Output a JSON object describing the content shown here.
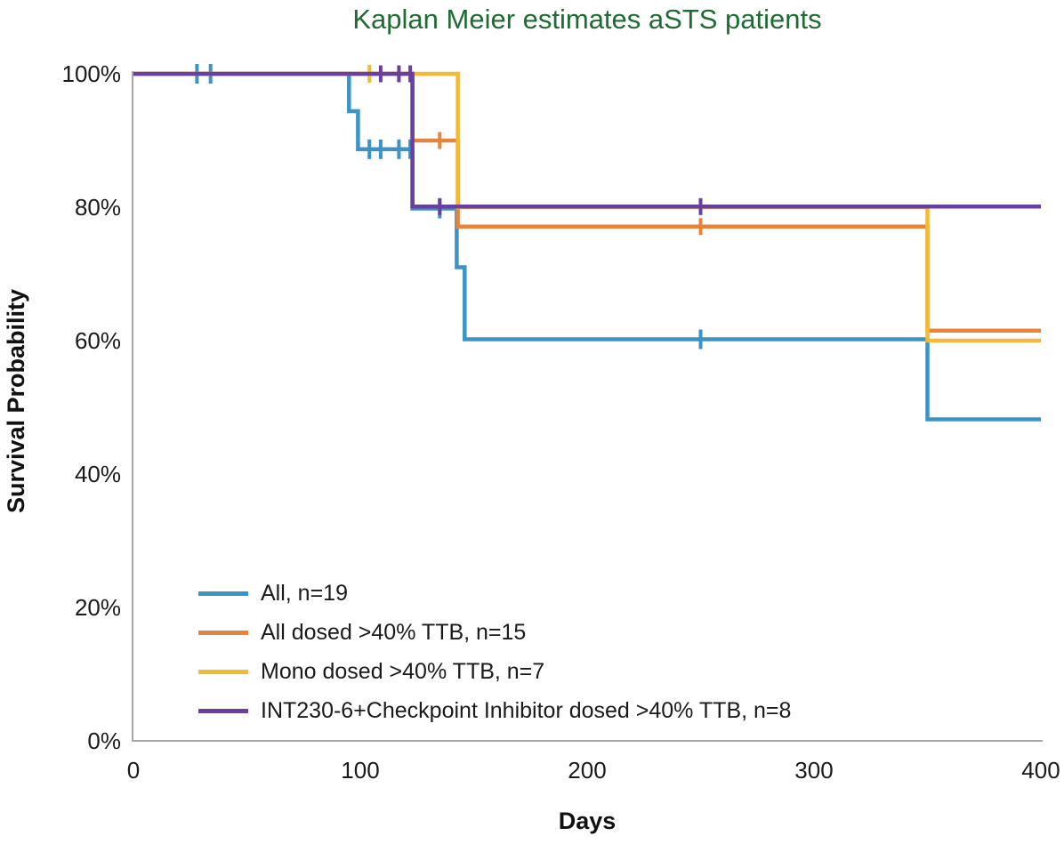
{
  "chart_data": {
    "type": "line",
    "subtype": "kaplan-meier-step",
    "title": "Kaplan Meier estimates aSTS patients",
    "title_color": "#1E6B34",
    "xlabel": "Days",
    "ylabel": "Survival Probability",
    "xlim": [
      0,
      400
    ],
    "ylim": [
      0,
      100
    ],
    "grid": false,
    "axis_color": "#A6A6A6",
    "legend_position": "inside-bottom-left",
    "x_ticks": [
      {
        "value": 0,
        "label": "0"
      },
      {
        "value": 100,
        "label": "100"
      },
      {
        "value": 200,
        "label": "200"
      },
      {
        "value": 300,
        "label": "300"
      },
      {
        "value": 400,
        "label": "400"
      }
    ],
    "y_ticks": [
      {
        "value": 100,
        "label": "100%"
      },
      {
        "value": 80,
        "label": "80%"
      },
      {
        "value": 60,
        "label": "60%"
      },
      {
        "value": 40,
        "label": "40%"
      },
      {
        "value": 20,
        "label": "20%"
      },
      {
        "value": 0,
        "label": "0%"
      }
    ],
    "series": [
      {
        "name": "All, n=19",
        "color": "#3B93C6",
        "tick_half_length": 11,
        "points": [
          [
            0,
            100
          ],
          [
            95,
            100
          ],
          [
            95,
            94.4
          ],
          [
            99,
            94.4
          ],
          [
            99,
            88.7
          ],
          [
            123,
            88.7
          ],
          [
            123,
            79.8
          ],
          [
            142.5,
            79.8
          ],
          [
            142.5,
            71
          ],
          [
            146,
            71
          ],
          [
            146,
            60.2
          ],
          [
            350,
            60.2
          ],
          [
            350,
            48.2
          ],
          [
            400,
            48.2
          ]
        ],
        "censor_marks": [
          [
            28,
            100
          ],
          [
            34,
            100
          ],
          [
            104,
            88.7
          ],
          [
            109,
            88.7
          ],
          [
            117,
            88.7
          ],
          [
            122,
            88.7
          ],
          [
            135,
            79.8
          ],
          [
            250,
            60.2
          ]
        ]
      },
      {
        "name": "All dosed >40% TTB, n=15",
        "color": "#E8833A",
        "tick_half_length": 9.5,
        "points": [
          [
            0,
            100
          ],
          [
            123,
            100
          ],
          [
            123,
            90
          ],
          [
            143,
            90
          ],
          [
            143,
            77.1
          ],
          [
            350,
            77.1
          ],
          [
            350,
            61.5
          ],
          [
            400,
            61.5
          ]
        ],
        "censor_marks": [
          [
            135,
            90
          ],
          [
            250,
            77.1
          ]
        ]
      },
      {
        "name": "Mono dosed >40% TTB, n=7",
        "color": "#F3BA36",
        "tick_half_length": 10,
        "points": [
          [
            0,
            100
          ],
          [
            143,
            100
          ],
          [
            143,
            80
          ],
          [
            350,
            80
          ],
          [
            350,
            60
          ],
          [
            400,
            60
          ]
        ],
        "censor_marks": [
          [
            104,
            100
          ]
        ]
      },
      {
        "name": "INT230-6+Checkpoint Inhibitor dosed >40% TTB, n=8",
        "color": "#6B3FA0",
        "tick_half_length": 9.5,
        "points": [
          [
            0,
            100
          ],
          [
            123,
            100
          ],
          [
            123,
            80.1
          ],
          [
            400,
            80.1
          ]
        ],
        "censor_marks": [
          [
            109,
            100
          ],
          [
            117,
            100
          ],
          [
            122,
            100
          ],
          [
            135,
            80.1
          ],
          [
            250,
            80.1
          ]
        ]
      }
    ]
  }
}
